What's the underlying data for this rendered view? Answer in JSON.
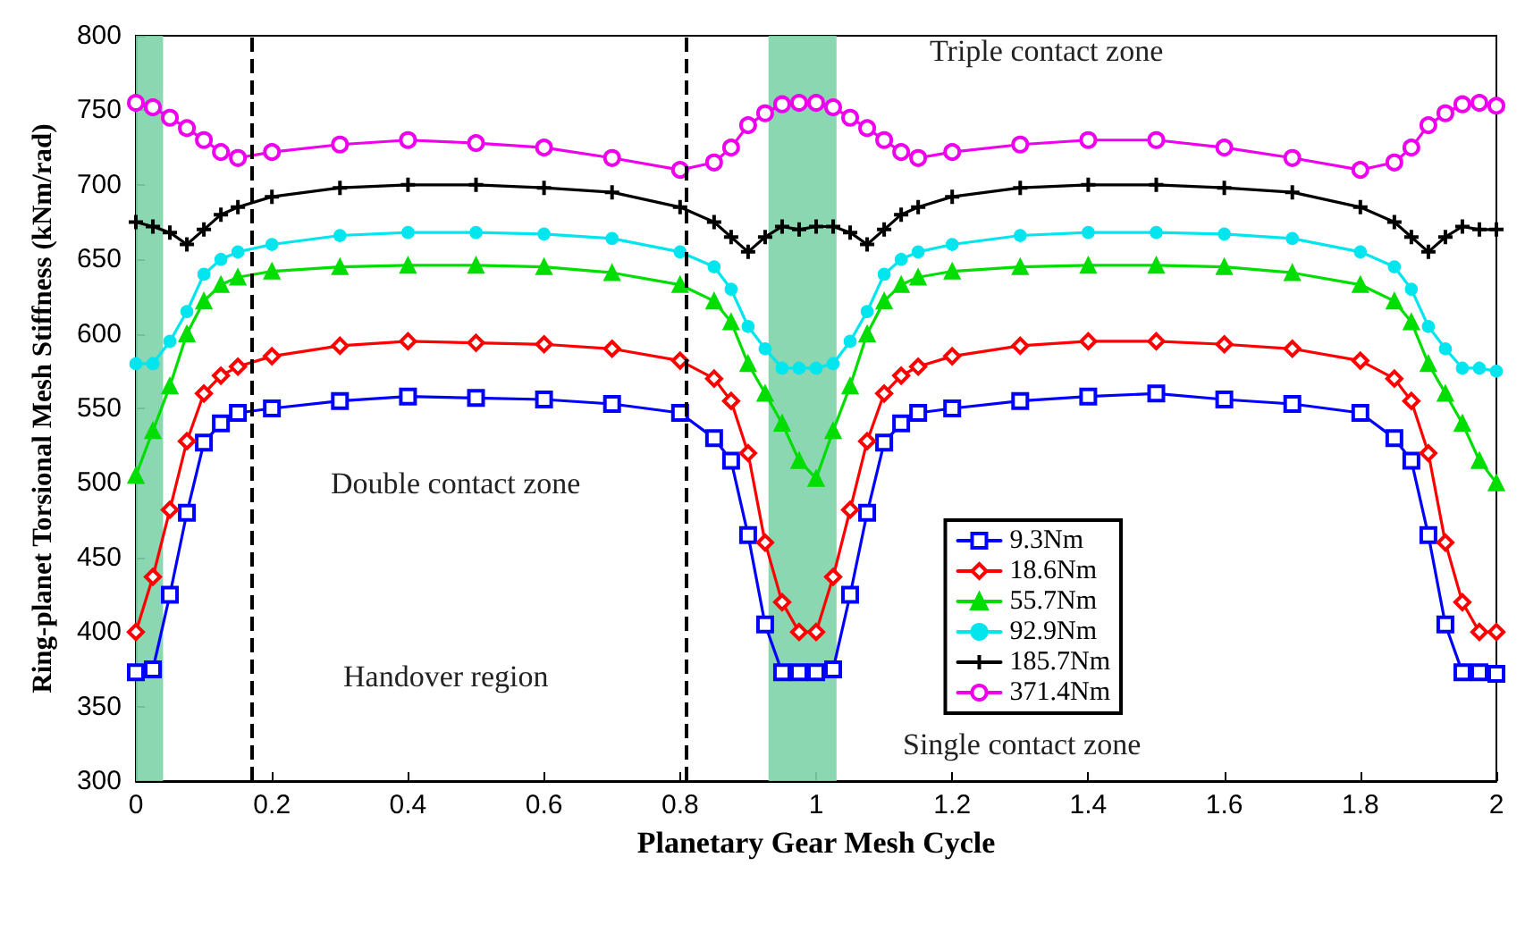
{
  "chart_data": {
    "type": "line",
    "xlabel": "Planetary Gear Mesh Cycle",
    "ylabel": "Ring-planet Torsional Mesh Stiffness (kNm/rad)",
    "x": [
      0,
      0.025,
      0.05,
      0.075,
      0.1,
      0.125,
      0.15,
      0.2,
      0.3,
      0.4,
      0.5,
      0.6,
      0.7,
      0.8,
      0.85,
      0.875,
      0.9,
      0.925,
      0.95,
      0.975,
      1,
      1.025,
      1.05,
      1.075,
      1.1,
      1.125,
      1.15,
      1.2,
      1.3,
      1.4,
      1.5,
      1.6,
      1.7,
      1.8,
      1.85,
      1.875,
      1.9,
      1.925,
      1.95,
      1.975,
      2
    ],
    "xlim": [
      0,
      2
    ],
    "xticks": [
      0,
      0.2,
      0.4,
      0.6,
      0.8,
      1,
      1.2,
      1.4,
      1.6,
      1.8,
      2
    ],
    "ylim": [
      300,
      800
    ],
    "yticks": [
      300,
      350,
      400,
      450,
      500,
      550,
      600,
      650,
      700,
      750,
      800
    ],
    "grid": false,
    "legend": "right",
    "line_style": "solid",
    "series": [
      {
        "name": "9.3Nm",
        "color": "#0000ff",
        "marker": "square",
        "values": [
          373,
          375,
          425,
          480,
          527,
          540,
          547,
          550,
          555,
          558,
          557,
          556,
          553,
          547,
          530,
          515,
          465,
          405,
          373,
          373,
          373,
          375,
          425,
          480,
          527,
          540,
          547,
          550,
          555,
          558,
          560,
          556,
          553,
          547,
          530,
          515,
          465,
          405,
          373,
          373,
          372
        ]
      },
      {
        "name": "18.6Nm",
        "color": "#ff0000",
        "marker": "diamond",
        "values": [
          400,
          437,
          482,
          528,
          560,
          572,
          578,
          585,
          592,
          595,
          594,
          593,
          590,
          582,
          570,
          555,
          520,
          460,
          420,
          400,
          400,
          437,
          482,
          528,
          560,
          572,
          578,
          585,
          592,
          595,
          595,
          593,
          590,
          582,
          570,
          555,
          520,
          460,
          420,
          400,
          400
        ]
      },
      {
        "name": "55.7Nm",
        "color": "#00dd00",
        "marker": "triangle",
        "values": [
          505,
          535,
          565,
          600,
          622,
          633,
          638,
          642,
          645,
          646,
          646,
          645,
          641,
          633,
          622,
          608,
          580,
          560,
          540,
          515,
          503,
          535,
          565,
          600,
          622,
          633,
          638,
          642,
          645,
          646,
          646,
          645,
          641,
          633,
          622,
          608,
          580,
          560,
          540,
          515,
          500
        ]
      },
      {
        "name": "92.9Nm",
        "color": "#00e5ee",
        "marker": "circle",
        "values": [
          580,
          580,
          595,
          615,
          640,
          650,
          655,
          660,
          666,
          668,
          668,
          667,
          664,
          655,
          645,
          630,
          605,
          590,
          577,
          577,
          577,
          580,
          595,
          615,
          640,
          650,
          655,
          660,
          666,
          668,
          668,
          667,
          664,
          655,
          645,
          630,
          605,
          590,
          577,
          577,
          575
        ]
      },
      {
        "name": "185.7Nm",
        "color": "#000000",
        "marker": "cross",
        "values": [
          675,
          672,
          668,
          660,
          670,
          680,
          685,
          692,
          698,
          700,
          700,
          698,
          695,
          685,
          675,
          665,
          655,
          665,
          672,
          670,
          672,
          672,
          668,
          660,
          670,
          680,
          685,
          692,
          698,
          700,
          700,
          698,
          695,
          685,
          675,
          665,
          655,
          665,
          672,
          670,
          670
        ]
      },
      {
        "name": "371.4Nm",
        "color": "#ee00ee",
        "marker": "circle",
        "values": [
          755,
          752,
          745,
          738,
          730,
          722,
          718,
          722,
          727,
          730,
          728,
          725,
          718,
          710,
          715,
          725,
          740,
          748,
          754,
          755,
          755,
          752,
          745,
          738,
          730,
          722,
          718,
          722,
          727,
          730,
          730,
          725,
          718,
          710,
          715,
          725,
          740,
          748,
          754,
          755,
          753
        ]
      }
    ],
    "bands": [
      {
        "axis": "x",
        "from": 0,
        "to": 0.04,
        "color": "#7dd3a8"
      },
      {
        "axis": "x",
        "from": 0.93,
        "to": 1.03,
        "color": "#7dd3a8"
      }
    ],
    "ref_lines": [
      {
        "axis": "x",
        "value": 0.165,
        "color": "#000000",
        "line_style": "dashed"
      },
      {
        "axis": "x",
        "value": 0.815,
        "color": "#000000",
        "line_style": "dashed"
      }
    ],
    "annotations": [
      "Triple contact zone",
      "Double contact zone",
      "Handover region",
      "Single contact zone"
    ]
  }
}
